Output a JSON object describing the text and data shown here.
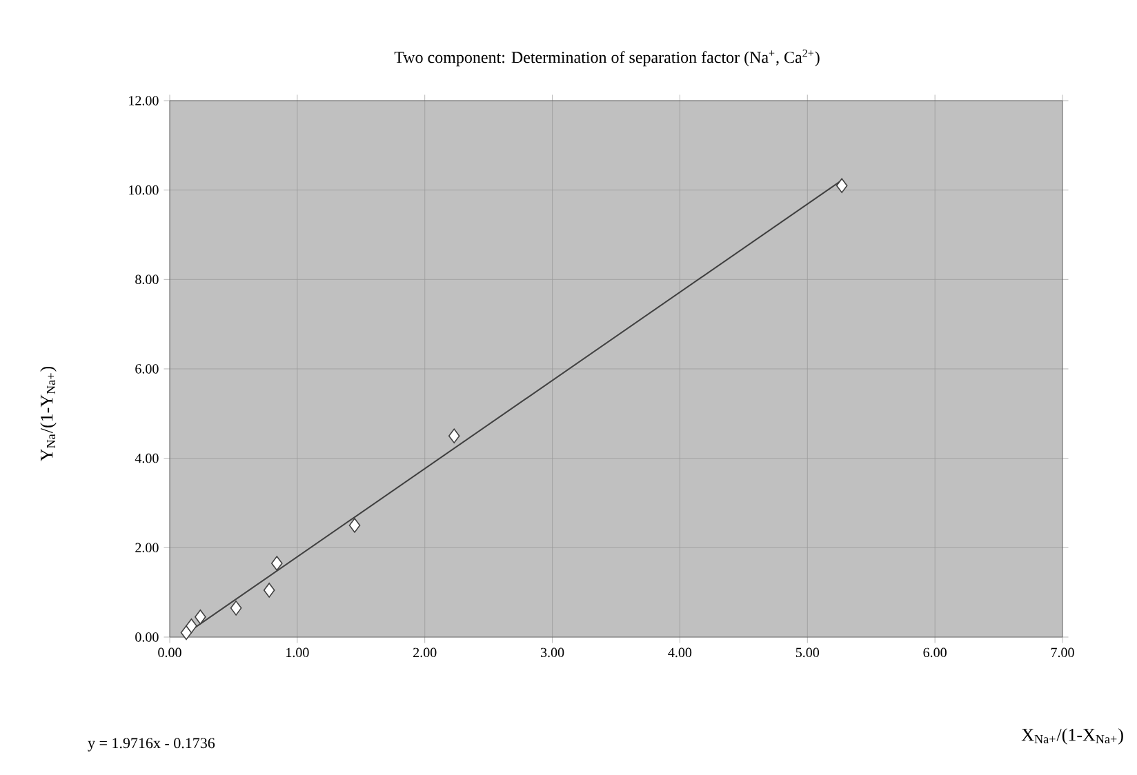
{
  "chart_data": {
    "type": "scatter",
    "title": "Two component: Determination of separation factor (Na$^{+}$, Ca$^{2+}$)",
    "xlabel": "X$_{Na+}$/(1-X$_{Na+}$)",
    "ylabel": "Y$_{Na}$/(1-Y$_{Na+}$)",
    "annotations": [
      "y = 1.9716x - 0.1736"
    ],
    "series": [
      {
        "color": "#ffffff",
        "marker": "diamond",
        "x": [
          0.13,
          0.17,
          0.24,
          0.52,
          0.78,
          0.84,
          1.45,
          2.23,
          5.27
        ],
        "values": [
          0.1,
          0.25,
          0.45,
          0.65,
          1.05,
          1.65,
          2.5,
          4.5,
          10.1
        ]
      },
      {
        "type": "line",
        "color": "#404040",
        "marker": "none",
        "line_style": "solid",
        "x": [
          0.13,
          5.27
        ],
        "values": [
          0.08,
          10.22
        ]
      }
    ],
    "xlim": [
      0,
      7
    ],
    "ylim": [
      0,
      12
    ],
    "xticks": [
      {
        "value": 0,
        "label": "0.00"
      },
      {
        "value": 1,
        "label": "1.00"
      },
      {
        "value": 2,
        "label": "2.00"
      },
      {
        "value": 3,
        "label": "3.00"
      },
      {
        "value": 4,
        "label": "4.00"
      },
      {
        "value": 5,
        "label": "5.00"
      },
      {
        "value": 6,
        "label": "6.00"
      },
      {
        "value": 7,
        "label": "7.00"
      }
    ],
    "yticks": [
      {
        "value": 0,
        "label": "0.00"
      },
      {
        "value": 2,
        "label": "2.00"
      },
      {
        "value": 4,
        "label": "4.00"
      },
      {
        "value": 6,
        "label": "6.00"
      },
      {
        "value": 8,
        "label": "8.00"
      },
      {
        "value": 10,
        "label": "10.00"
      },
      {
        "value": 12,
        "label": "12.00"
      }
    ],
    "grid": true
  }
}
